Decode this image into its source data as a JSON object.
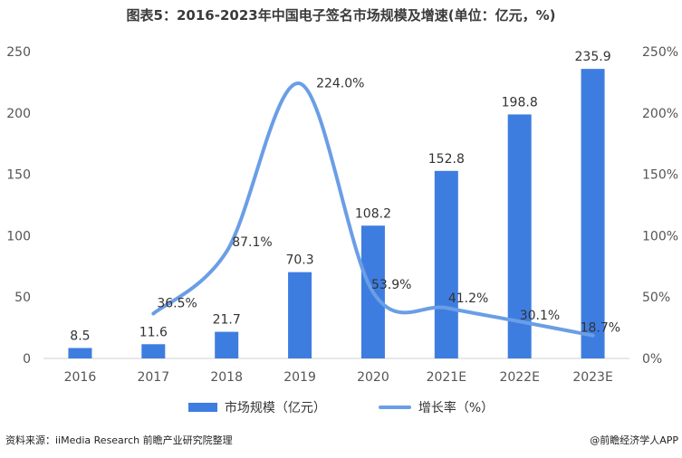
{
  "title": "图表5：2016-2023年中国电子签名市场规模及增速(单位：亿元，%)",
  "source": "资料来源：iiMedia Research 前瞻产业研究院整理",
  "credit": "@前瞻经济学人APP",
  "colors": {
    "bar": "#3e7de0",
    "line": "#6a9ee6",
    "axis_text": "#555555"
  },
  "chart_data": {
    "type": "bar",
    "categories": [
      "2016",
      "2017",
      "2018",
      "2019",
      "2020",
      "2021E",
      "2022E",
      "2023E"
    ],
    "series": [
      {
        "name": "市场规模（亿元）",
        "type": "bar",
        "axis": "left",
        "values": [
          8.5,
          11.6,
          21.7,
          70.3,
          108.2,
          152.8,
          198.8,
          235.9
        ],
        "labels": [
          "8.5",
          "11.6",
          "21.7",
          "70.3",
          "108.2",
          "152.8",
          "198.8",
          "235.9"
        ]
      },
      {
        "name": "增长率（%）",
        "type": "line",
        "axis": "right",
        "smooth": true,
        "values": [
          null,
          36.5,
          87.1,
          224.0,
          53.9,
          41.2,
          30.1,
          18.7
        ],
        "labels": [
          null,
          "36.5%",
          "87.1%",
          "224.0%",
          "53.9%",
          "41.2%",
          "30.1%",
          "18.7%"
        ]
      }
    ],
    "y_left": {
      "min": 0,
      "max": 250,
      "ticks": [
        "0",
        "50",
        "100",
        "150",
        "200",
        "250"
      ]
    },
    "y_right": {
      "min": 0,
      "max": 250,
      "ticks": [
        "0%",
        "50%",
        "100%",
        "150%",
        "200%",
        "250%"
      ]
    },
    "grid": false,
    "legend_position": "bottom"
  }
}
